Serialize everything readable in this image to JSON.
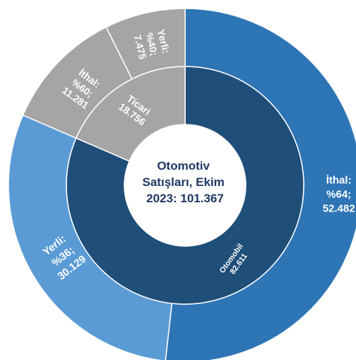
{
  "chart_data": {
    "type": "pie",
    "subtype": "sunburst",
    "center_label_lines": [
      "Otomotiv",
      "Satışları, Ekim",
      "2023: 101.367"
    ],
    "total": 101367,
    "inner_ring": [
      {
        "id": "otomobil",
        "label_lines": [
          "Otomobil",
          "82.611"
        ],
        "value": 82611,
        "color": "#1f4e79"
      },
      {
        "id": "ticari",
        "label_lines": [
          "Ticari",
          "18.756"
        ],
        "value": 18756,
        "color": "#a5a5a5"
      }
    ],
    "outer_ring": [
      {
        "id": "otomobil-ithal",
        "parent": "otomobil",
        "label_lines": [
          "İthal:",
          "%64;",
          "52.482"
        ],
        "value": 52482,
        "color": "#2e75b6"
      },
      {
        "id": "otomobil-yerli",
        "parent": "otomobil",
        "label_lines": [
          "Yerli:",
          "%36;",
          "30.129"
        ],
        "value": 30129,
        "color": "#5b9bd5"
      },
      {
        "id": "ticari-ithal",
        "parent": "ticari",
        "label_lines": [
          "İthal:",
          "%60;",
          "11.281"
        ],
        "value": 11281,
        "color": "#a5a5a5"
      },
      {
        "id": "ticari-yerli",
        "parent": "ticari",
        "label_lines": [
          "Yerli:",
          "%40;",
          "7.475"
        ],
        "value": 7475,
        "color": "#a5a5a5"
      }
    ]
  }
}
